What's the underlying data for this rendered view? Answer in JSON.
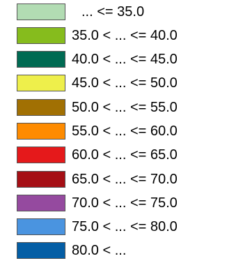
{
  "legend": {
    "items": [
      {
        "label": "... <= 35.0",
        "color": "#b2dcb3"
      },
      {
        "label": "35.0 < ... <= 40.0",
        "color": "#86bc1d"
      },
      {
        "label": "40.0 < ... <= 45.0",
        "color": "#006b53"
      },
      {
        "label": "45.0 < ... <= 50.0",
        "color": "#eeef4b"
      },
      {
        "label": "50.0 < ... <= 55.0",
        "color": "#a17003"
      },
      {
        "label": "55.0 < ... <= 60.0",
        "color": "#fe8b00"
      },
      {
        "label": "60.0 < ... <= 65.0",
        "color": "#e5191b"
      },
      {
        "label": "65.0 < ... <= 70.0",
        "color": "#a50f15"
      },
      {
        "label": "70.0 < ... <= 75.0",
        "color": "#954a9f"
      },
      {
        "label": "75.0 < ... <= 80.0",
        "color": "#4a94e0"
      },
      {
        "label": "80.0 < ...",
        "color": "#045ea5"
      }
    ]
  }
}
